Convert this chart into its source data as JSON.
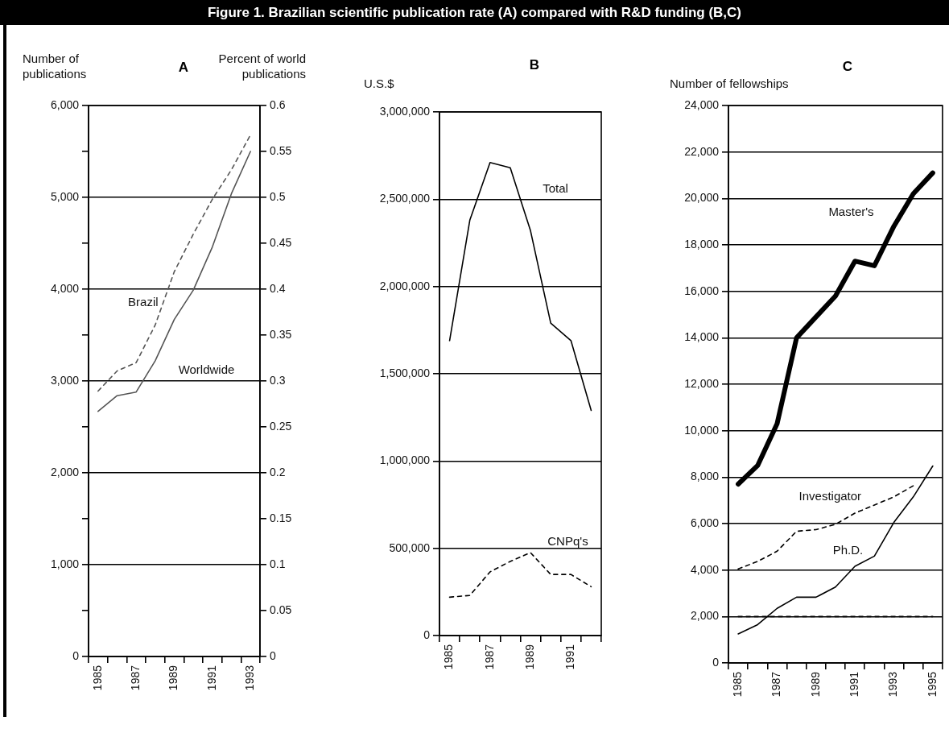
{
  "chart_data": [
    {
      "type": "line",
      "title": "A",
      "ylabel": "Number of publications",
      "y2label": "Percent of world publications",
      "annotations": [
        "Figure 1. Brazilian scientific publication rate (A) compared with R&D funding (B,C)"
      ],
      "categories": [
        "1985",
        null,
        "1987",
        null,
        "1989",
        null,
        "1991",
        null,
        "1993"
      ],
      "series": [
        {
          "name": "Brazil",
          "color": "#555555",
          "line_style": "dashed",
          "values": [
            2890,
            3110,
            3200,
            3610,
            4190,
            4600,
            4980,
            5300,
            5680
          ]
        },
        {
          "name": "Worldwide",
          "color": "#555555",
          "line_style": "solid",
          "axis": "y2",
          "values": [
            0.267,
            0.284,
            0.288,
            0.322,
            0.367,
            0.399,
            0.446,
            0.504,
            0.55
          ]
        }
      ],
      "ylim": [
        0,
        6000
      ],
      "yticks": [
        {
          "value": 0,
          "label": "0"
        },
        {
          "value": 500,
          "label": null
        },
        {
          "value": 1000,
          "label": "1,000"
        },
        {
          "value": 1500,
          "label": null
        },
        {
          "value": 2000,
          "label": "2,000"
        },
        {
          "value": 2500,
          "label": null
        },
        {
          "value": 3000,
          "label": "3,000"
        },
        {
          "value": 3500,
          "label": null
        },
        {
          "value": 4000,
          "label": "4,000"
        },
        {
          "value": 4500,
          "label": null
        },
        {
          "value": 5000,
          "label": "5,000"
        },
        {
          "value": 5500,
          "label": null
        },
        {
          "value": 6000,
          "label": "6,000"
        }
      ],
      "y2lim": [
        0,
        0.6
      ],
      "y2ticks": [
        0,
        0.05,
        0.1,
        0.15,
        0.2,
        0.25,
        0.3,
        0.35,
        0.4,
        0.45,
        0.5,
        0.55,
        0.6
      ],
      "grid": "y"
    },
    {
      "type": "line",
      "title": "B",
      "ylabel": "U.S.$",
      "categories": [
        "1985",
        null,
        "1987",
        null,
        "1989",
        null,
        "1991",
        null
      ],
      "series": [
        {
          "name": "Total",
          "color": "#000000",
          "line_style": "solid",
          "values": [
            1690000,
            2380000,
            2710000,
            2680000,
            2320000,
            1790000,
            1690000,
            1290000
          ]
        },
        {
          "name": "CNPq's",
          "color": "#000000",
          "line_style": "dashed",
          "values": [
            220000,
            230000,
            365000,
            425000,
            475000,
            350000,
            350000,
            280000
          ]
        }
      ],
      "ylim": [
        0,
        3000000
      ],
      "yticks": [
        {
          "value": 0,
          "label": "0"
        },
        {
          "value": 500000,
          "label": "500,000"
        },
        {
          "value": 1000000,
          "label": "1,000,000"
        },
        {
          "value": 1500000,
          "label": "1,500,000"
        },
        {
          "value": 2000000,
          "label": "2,000,000"
        },
        {
          "value": 2500000,
          "label": "2,500,000"
        },
        {
          "value": 3000000,
          "label": "3,000,000"
        }
      ],
      "grid": "y"
    },
    {
      "type": "line",
      "title": "C",
      "ylabel": "Number of fellowships",
      "categories": [
        "1985",
        null,
        "1987",
        null,
        "1989",
        null,
        "1991",
        null,
        "1993",
        null,
        "1995"
      ],
      "series": [
        {
          "name": "Master's",
          "color": "#000000",
          "line_style": "solid",
          "values": [
            7700,
            8500,
            10300,
            14000,
            14900,
            15800,
            17300,
            17100,
            18800,
            20200,
            21100
          ]
        },
        {
          "name": "Investigator",
          "color": "#000000",
          "line_style": "dashed",
          "values": [
            4050,
            4370,
            4810,
            5670,
            5740,
            5970,
            6450,
            6800,
            7150,
            7630,
            null
          ]
        },
        {
          "name": "Ph.D.",
          "color": "#000000",
          "line_style": "solid",
          "values": [
            1250,
            1650,
            2350,
            2830,
            2830,
            3270,
            4160,
            4600,
            6050,
            7150,
            8480
          ]
        },
        {
          "color": "#000000",
          "line_style": "dashed",
          "values": [
            2000,
            2000,
            2000,
            2000,
            2000,
            2000,
            2000,
            2000,
            2000,
            2000,
            2000
          ]
        }
      ],
      "ylim": [
        0,
        24000
      ],
      "yticks": [
        {
          "value": 0,
          "label": "0"
        },
        {
          "value": 2000,
          "label": "2,000"
        },
        {
          "value": 4000,
          "label": "4,000"
        },
        {
          "value": 6000,
          "label": "6,000"
        },
        {
          "value": 8000,
          "label": "8,000"
        },
        {
          "value": 10000,
          "label": "10,000"
        },
        {
          "value": 12000,
          "label": "12,000"
        },
        {
          "value": 14000,
          "label": "14,000"
        },
        {
          "value": 16000,
          "label": "16,000"
        },
        {
          "value": 18000,
          "label": "18,000"
        },
        {
          "value": 20000,
          "label": "20,000"
        },
        {
          "value": 22000,
          "label": "22,000"
        },
        {
          "value": 24000,
          "label": "24,000"
        }
      ],
      "grid": "y"
    }
  ]
}
